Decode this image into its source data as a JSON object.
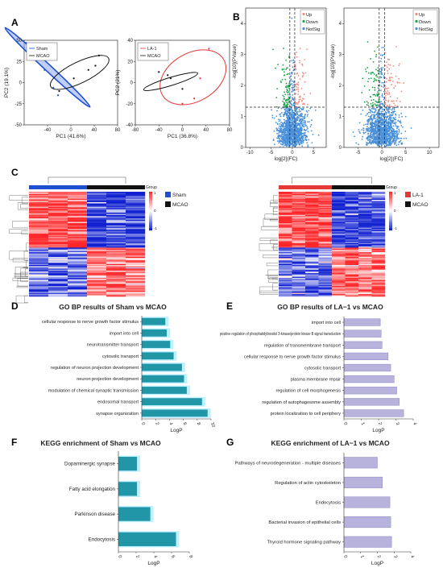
{
  "panel_letters": [
    "A",
    "B",
    "C",
    "D",
    "E",
    "F",
    "G"
  ],
  "colors": {
    "sham": "#1f4fd1",
    "mcao": "#111111",
    "la1": "#e53935",
    "up": "#f28b82",
    "down": "#1aa34a",
    "notsig": "#4a90d9",
    "bar_blue": "#2196a6",
    "bar_glow": "#bff0ff",
    "bar_grey": "#b7b3dc",
    "hm_high": "#e8262a",
    "hm_low": "#1020d0",
    "hm_mid": "#ffffff"
  },
  "chart_data": [
    {
      "id": "A1",
      "type": "scatter",
      "subtype": "pca",
      "xlabel": "PC1 (41.6%)",
      "ylabel": "PC2 (19.1%)",
      "xlim": [
        -80,
        80
      ],
      "ylim": [
        -50,
        50
      ],
      "xticks": [
        "-40",
        "0",
        "40",
        "80"
      ],
      "yticks": [
        "50",
        "25",
        "0",
        "-25",
        "-50"
      ],
      "legend": [
        "Sham",
        "MCAO"
      ],
      "series": [
        {
          "name": "Sham",
          "points": [
            [
              -77,
              47
            ],
            [
              -60,
              30
            ],
            [
              -45,
              15
            ],
            [
              -30,
              -6
            ],
            [
              -22,
              -15
            ]
          ]
        },
        {
          "name": "MCAO",
          "points": [
            [
              -20,
              -10
            ],
            [
              5,
              5
            ],
            [
              30,
              15
            ],
            [
              48,
              32
            ],
            [
              42,
              20
            ]
          ]
        }
      ]
    },
    {
      "id": "A2",
      "type": "scatter",
      "subtype": "pca",
      "xlabel": "PC1 (36.8%)",
      "ylabel": "PC2 (21%)",
      "xlim": [
        -80,
        80
      ],
      "ylim": [
        -40,
        40
      ],
      "xticks": [
        "-80",
        "-40",
        "0",
        "40",
        "80"
      ],
      "yticks": [
        "40",
        "20",
        "0",
        "-20",
        "-40"
      ],
      "legend": [
        "LA-1",
        "MCAO"
      ],
      "series": [
        {
          "name": "LA-1",
          "points": [
            [
              20,
              -15
            ],
            [
              45,
              32
            ],
            [
              30,
              4
            ],
            [
              0,
              -20
            ]
          ]
        },
        {
          "name": "MCAO",
          "points": [
            [
              -40,
              10
            ],
            [
              -20,
              4
            ],
            [
              0,
              -6
            ],
            [
              -25,
              7
            ]
          ]
        }
      ]
    },
    {
      "id": "B1",
      "type": "scatter",
      "subtype": "volcano",
      "xlabel": "log[2](FC)",
      "ylabel": "-log[10](PValue)",
      "xlim": [
        -11,
        8
      ],
      "ylim": [
        0,
        4.5
      ],
      "xticks": [
        "-10",
        "-5",
        "0",
        "5"
      ],
      "yticks": [
        "0",
        "1",
        "2",
        "3",
        "4"
      ],
      "legend": [
        "Up",
        "Down",
        "NotSig"
      ],
      "thresholds": {
        "fc": [
          -0.58,
          0.58
        ],
        "p": 1.3
      }
    },
    {
      "id": "B2",
      "type": "scatter",
      "subtype": "volcano",
      "xlabel": "log[2](FC)",
      "ylabel": "-log[10](PValue)",
      "xlim": [
        -8,
        12
      ],
      "ylim": [
        0,
        4.5
      ],
      "xticks": [
        "-5",
        "0",
        "5",
        "10"
      ],
      "yticks": [
        "0",
        "1",
        "2",
        "3",
        "4"
      ],
      "legend": [
        "Up",
        "Down",
        "NotSig"
      ],
      "thresholds": {
        "fc": [
          -0.58,
          0.58
        ],
        "p": 1.3
      }
    },
    {
      "id": "C1",
      "type": "heatmap",
      "group_label": "Group",
      "legend": [
        "Sham",
        "MCAO"
      ],
      "scale_ticks": [
        "1",
        "0",
        "-1"
      ],
      "groups": [
        3,
        3
      ]
    },
    {
      "id": "C2",
      "type": "heatmap",
      "group_label": "Group",
      "legend": [
        "LA-1",
        "MCAO"
      ],
      "scale_ticks": [
        "1",
        "0",
        "-1"
      ],
      "groups": [
        4,
        4
      ]
    },
    {
      "id": "D",
      "type": "bar",
      "orientation": "horizontal",
      "title": "GO BP results of Sham vs MCAO",
      "xlabel": "LogP",
      "xlim": [
        0,
        10
      ],
      "xticks": [
        "0",
        "2",
        "4",
        "6",
        "8",
        "10"
      ],
      "categories": [
        "cellular response to nerve growth factor stimulus",
        "import into cell",
        "neurotransmitter transport",
        "cytosolic transport",
        "regulation of neuron projection development",
        "neuron projection development",
        "modulation of chemical synaptic transmission",
        "endosomal transport",
        "synapse organization"
      ],
      "values": [
        3.4,
        3.6,
        4.1,
        4.6,
        5.8,
        6.1,
        6.5,
        8.7,
        9.5
      ]
    },
    {
      "id": "E",
      "type": "bar",
      "orientation": "horizontal",
      "title": "GO BP results of LA−1 vs MCAO",
      "xlabel": "LogP",
      "xlim": [
        0,
        4
      ],
      "xticks": [
        "0",
        "1",
        "2",
        "3",
        "4"
      ],
      "categories": [
        "import into cell",
        "positive regulation of phosphatidylinositol 3-kinase/protein kinase B signal transduction",
        "regulation of transmembrane transport",
        "cellular response to nerve growth factor stimulus",
        "cytosolic transport",
        "plasma membrane repair",
        "regulation of cell morphogenesis",
        "regulation of autophagosome assembly",
        "protein localization to cell periphery"
      ],
      "values": [
        2.1,
        2.15,
        2.2,
        2.55,
        2.7,
        2.9,
        3.05,
        3.2,
        3.45
      ]
    },
    {
      "id": "F",
      "type": "bar",
      "orientation": "horizontal",
      "title": "KEGG enrichment of Sham vs MCAO",
      "xlabel": "LogP",
      "xlim": [
        0,
        8
      ],
      "xticks": [
        "0",
        "2",
        "4",
        "6",
        "8"
      ],
      "categories": [
        "Dopaminergic synapse",
        "Fatty acid elongation",
        "Parkinson disease",
        "Endocytosis"
      ],
      "values": [
        2.1,
        2.1,
        3.6,
        6.5
      ]
    },
    {
      "id": "G",
      "type": "bar",
      "orientation": "horizontal",
      "title": "KEGG enrichment of LA−1 vs MCAO",
      "xlabel": "LogP",
      "xlim": [
        0,
        4
      ],
      "xticks": [
        "0",
        "1",
        "2",
        "3",
        "4"
      ],
      "categories": [
        "Pathways of neurodegeneration - multiple diseases",
        "Regulation of actin cytoskeleton",
        "Endocytosis",
        "Bacterial invasion of epithelial cells",
        "Thyroid hormone signaling pathway"
      ],
      "values": [
        2.0,
        2.3,
        2.75,
        2.8,
        2.85
      ]
    }
  ]
}
